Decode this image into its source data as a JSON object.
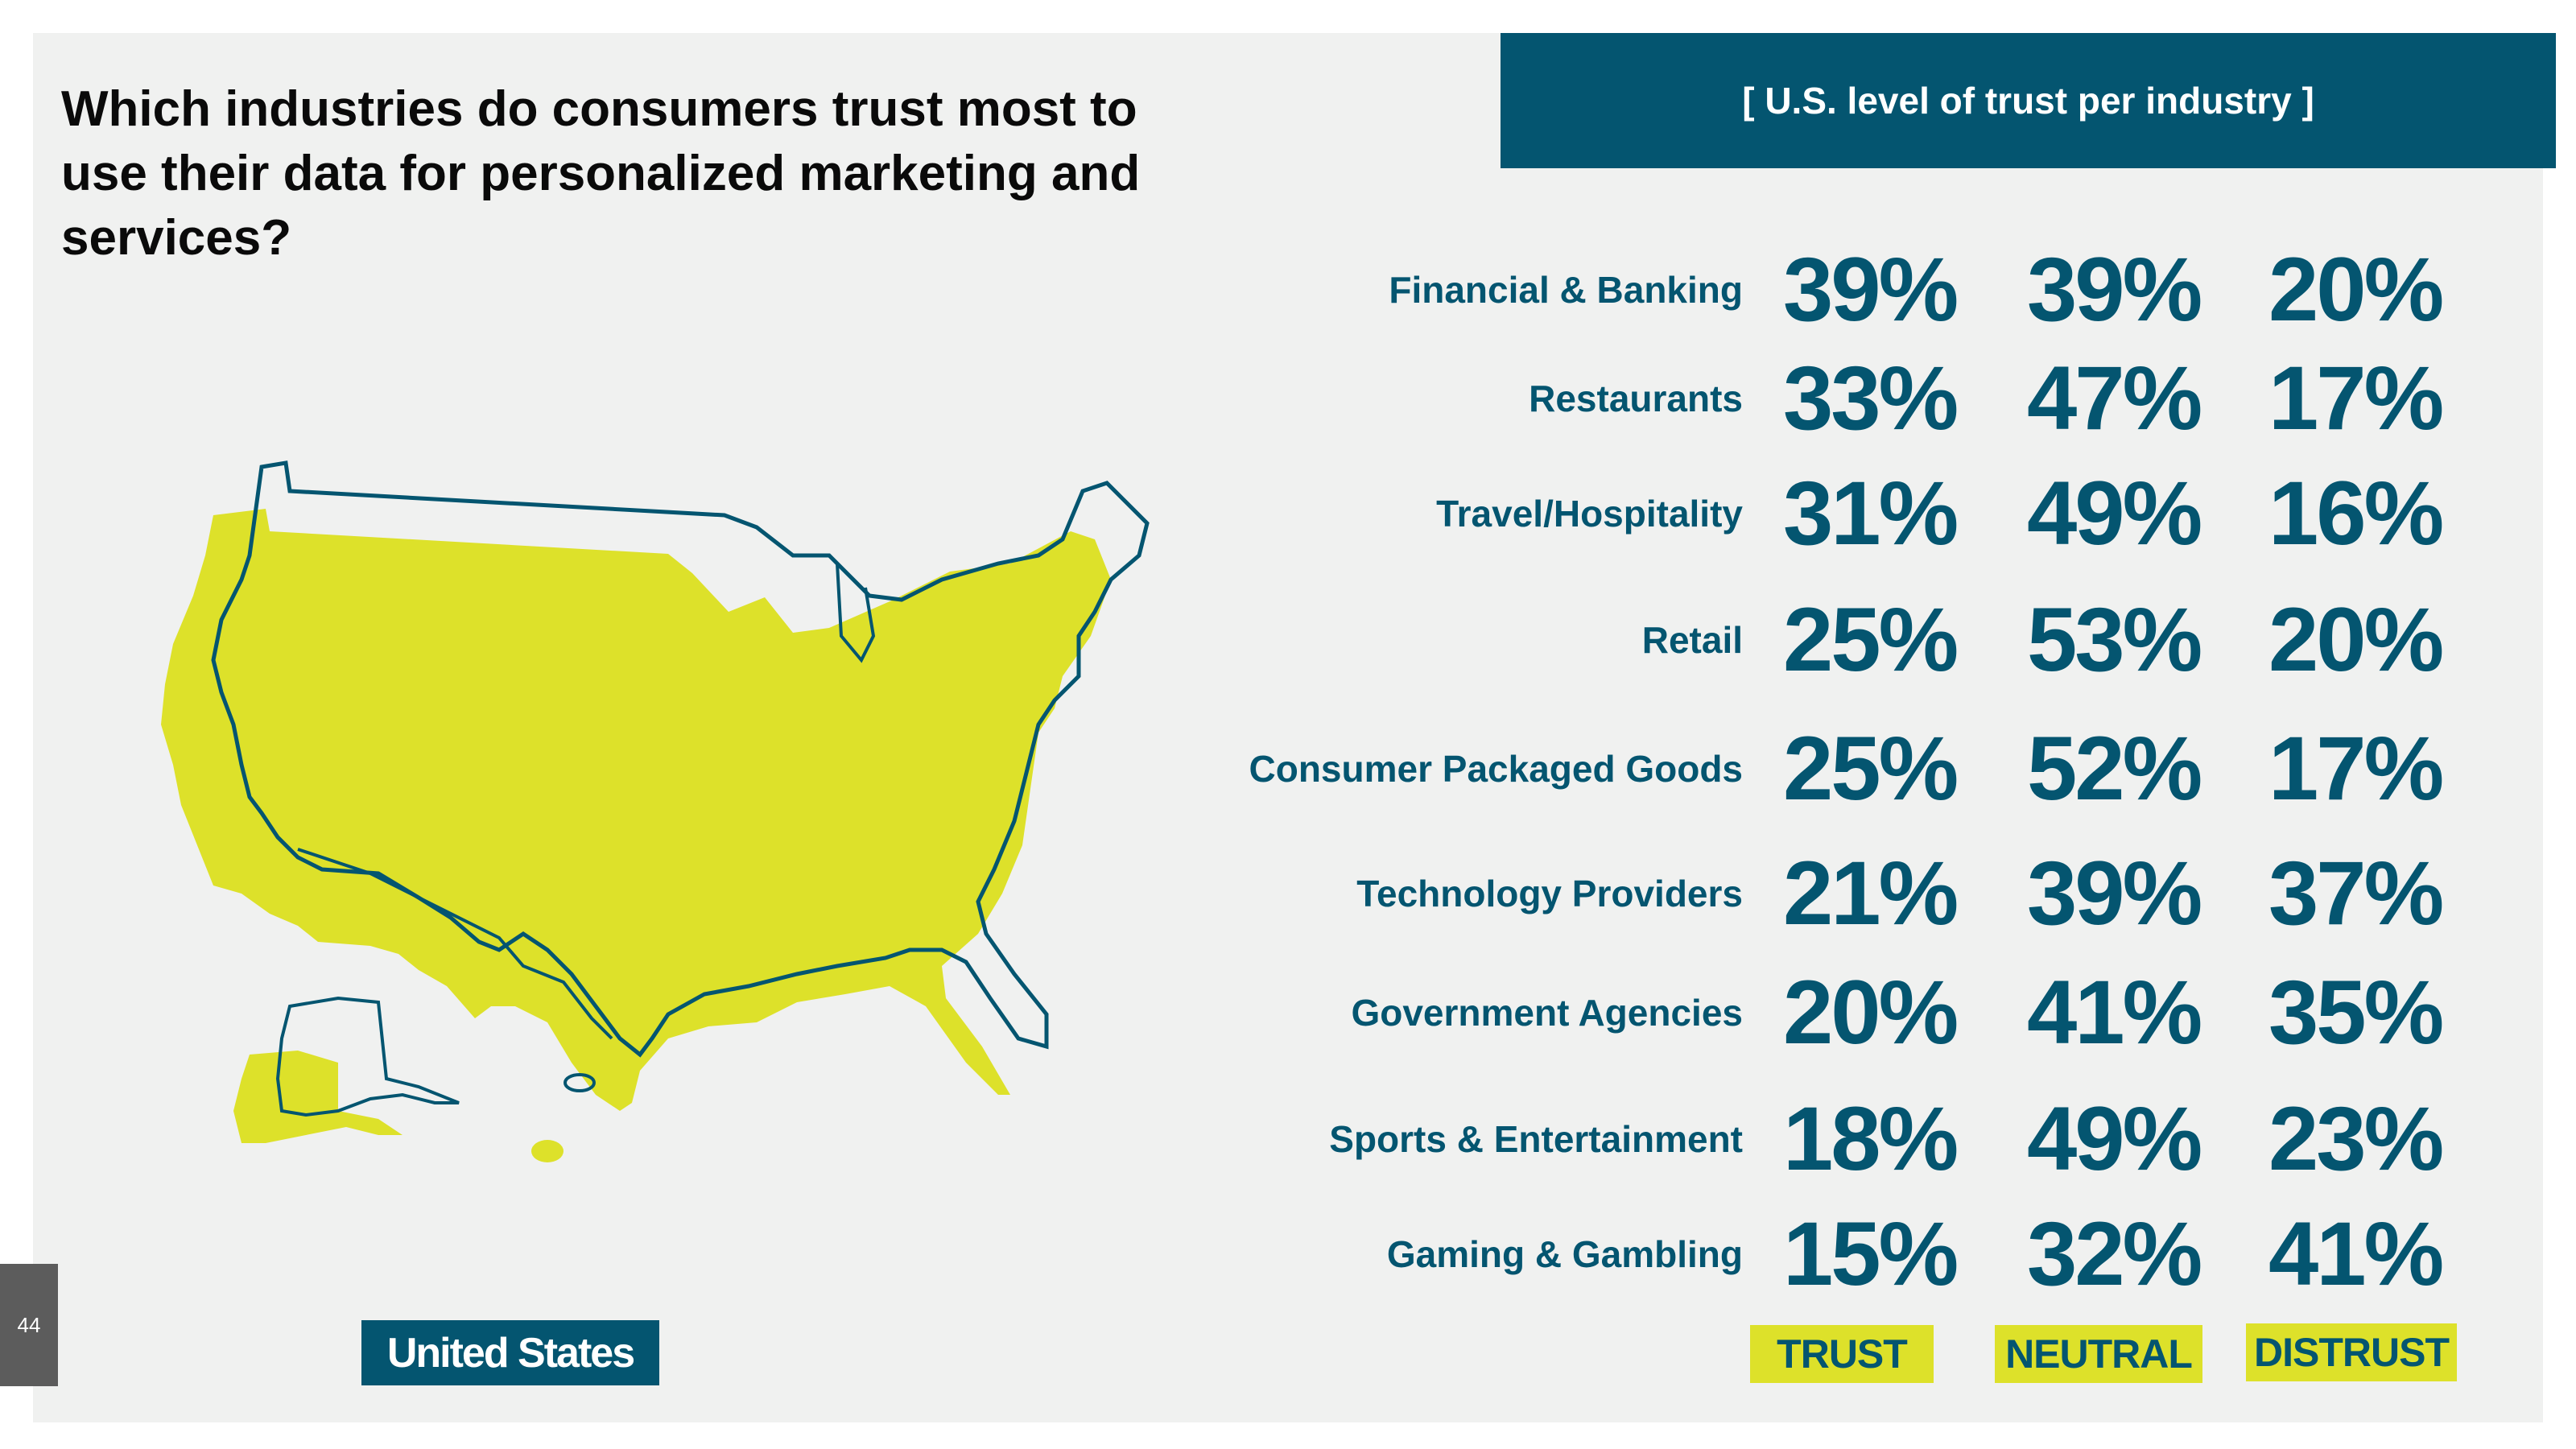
{
  "question": "Which industries do consumers trust most to use their data for personalized marketing and services?",
  "banner": "[ U.S. level of trust per industry ]",
  "country_label": "United States",
  "page_number": "44",
  "legend": {
    "trust": "TRUST",
    "neutral": "NEUTRAL",
    "distrust": "DISTRUST"
  },
  "colors": {
    "accent": "#045570",
    "highlight": "#dde12a",
    "background": "#f0f1f0"
  },
  "icons": [
    "us-map-icon"
  ],
  "rows": [
    {
      "label": "Financial & Banking",
      "trust": "39%",
      "neutral": "39%",
      "distrust": "20%"
    },
    {
      "label": "Restaurants",
      "trust": "33%",
      "neutral": "47%",
      "distrust": "17%"
    },
    {
      "label": "Travel/Hospitality",
      "trust": "31%",
      "neutral": "49%",
      "distrust": "16%"
    },
    {
      "label": "Retail",
      "trust": "25%",
      "neutral": "53%",
      "distrust": "20%"
    },
    {
      "label": "Consumer Packaged Goods",
      "trust": "25%",
      "neutral": "52%",
      "distrust": "17%"
    },
    {
      "label": "Technology Providers",
      "trust": "21%",
      "neutral": "39%",
      "distrust": "37%"
    },
    {
      "label": "Government Agencies",
      "trust": "20%",
      "neutral": "41%",
      "distrust": "35%"
    },
    {
      "label": "Sports & Entertainment",
      "trust": "18%",
      "neutral": "49%",
      "distrust": "23%"
    },
    {
      "label": "Gaming & Gambling",
      "trust": "15%",
      "neutral": "32%",
      "distrust": "41%"
    }
  ]
}
